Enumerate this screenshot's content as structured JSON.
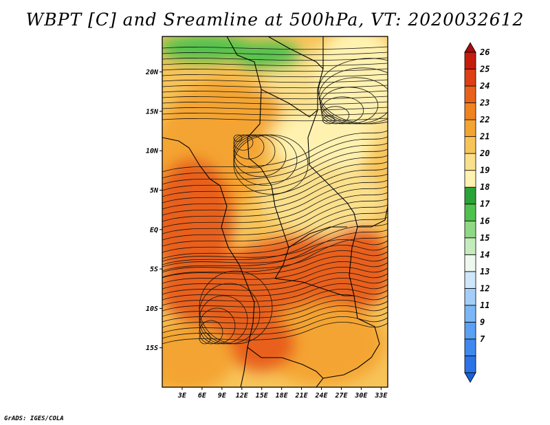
{
  "title": "WBPT [C] and Sreamline at 500hPa, VT: 2020032612",
  "credit": "GrADS: IGES/COLA",
  "axes": {
    "lat_labels": [
      "20N",
      "15N",
      "10N",
      "5N",
      "EQ",
      "5S",
      "10S",
      "15S"
    ],
    "lat_values": [
      20,
      15,
      10,
      5,
      0,
      -5,
      -10,
      -15
    ],
    "lon_labels": [
      "3E",
      "6E",
      "9E",
      "12E",
      "15E",
      "18E",
      "21E",
      "24E",
      "27E",
      "30E",
      "33E"
    ],
    "lon_values": [
      3,
      6,
      9,
      12,
      15,
      18,
      21,
      24,
      27,
      30,
      33
    ],
    "lon_range": [
      0,
      34
    ],
    "lat_range": [
      -20,
      24.5
    ]
  },
  "colorbar": {
    "labels": [
      "7",
      "9",
      "11",
      "12",
      "13",
      "14",
      "15",
      "16",
      "17",
      "18",
      "19",
      "20",
      "21",
      "22",
      "23",
      "24",
      "25",
      "26"
    ],
    "colors": [
      "#1a5fd8",
      "#2b73e6",
      "#3f88ee",
      "#5aa0f3",
      "#7bb7f6",
      "#a3cef8",
      "#cfe6fb",
      "#eef8ee",
      "#c4ebbc",
      "#8fd885",
      "#4fc24d",
      "#2aa339",
      "#fff2b0",
      "#fbe08c",
      "#f7c45a",
      "#f4a432",
      "#ef8221",
      "#e8611b",
      "#dd3e14",
      "#c41d0e",
      "#a30d0d"
    ]
  },
  "map_colors": {
    "hot": "#e8611b",
    "warm": "#f4a432",
    "mild": "#f7c45a",
    "cool": "#fbe08c",
    "coolest": "#fff2b0",
    "green": "#4fc24d"
  }
}
